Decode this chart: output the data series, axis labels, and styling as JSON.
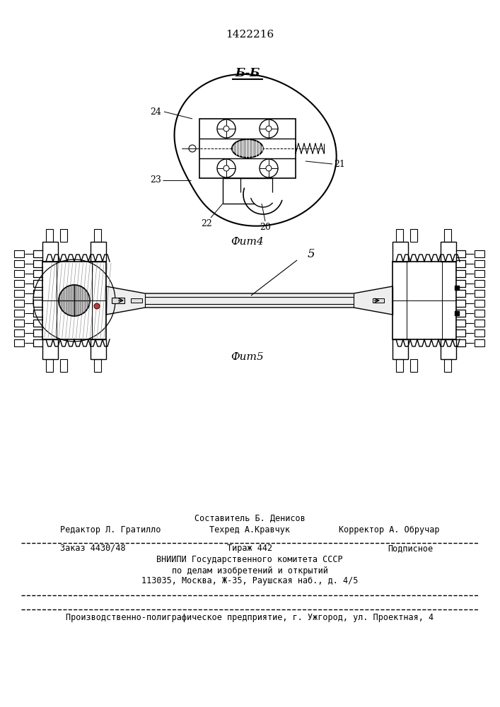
{
  "patent_number": "1422216",
  "fig4_label": "Б-Б",
  "fig4_caption": "Фит4",
  "fig5_caption": "Фит5",
  "label_5": "5",
  "footer_line0_center": "Составитель Б. Денисов",
  "footer_line1_left": "Редактор Л. Гратилло",
  "footer_line1_center": "Техред А.Кравчук",
  "footer_line1_right": "Корректор А. Обручар",
  "footer_line2_left": "Заказ 4430/48",
  "footer_line2_center": "Тираж 442",
  "footer_line2_right": "Подписное",
  "footer_line3": "ВНИИПИ Государственного комитета СССР",
  "footer_line4": "по делам изобретений и открытий",
  "footer_line5": "113035, Москва, Ж-35, Раушская наб., д. 4/5",
  "footer_line6": "Производственно-полиграфическое предприятие, г. Ужгород, ул. Проектная, 4",
  "bg_color": "#ffffff",
  "line_color": "#000000"
}
